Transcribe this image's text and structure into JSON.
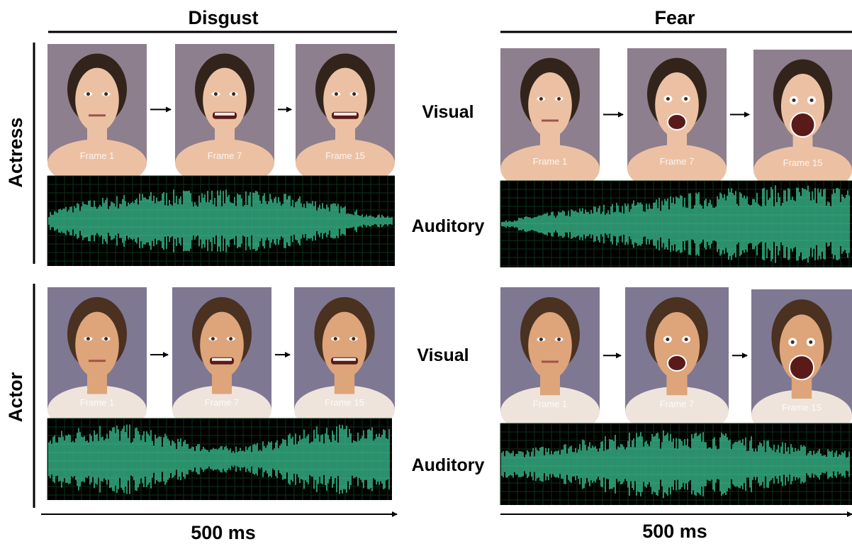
{
  "columns": [
    {
      "title": "Disgust",
      "time_label": "500 ms"
    },
    {
      "title": "Fear",
      "time_label": "500 ms"
    }
  ],
  "rows": [
    {
      "label": "Actress",
      "visual_label": "Visual",
      "auditory_label": "Auditory",
      "panels": [
        {
          "frames": [
            "Frame 1",
            "Frame 7",
            "Frame 15"
          ]
        },
        {
          "frames": [
            "Frame 1",
            "Frame 7",
            "Frame 15"
          ]
        }
      ]
    },
    {
      "label": "Actor",
      "visual_label": "Visual",
      "auditory_label": "Auditory",
      "panels": [
        {
          "frames": [
            "Frame 1",
            "Frame 7",
            "Frame 15"
          ]
        },
        {
          "frames": [
            "Frame 1",
            "Frame 7",
            "Frame 15"
          ]
        }
      ]
    }
  ]
}
